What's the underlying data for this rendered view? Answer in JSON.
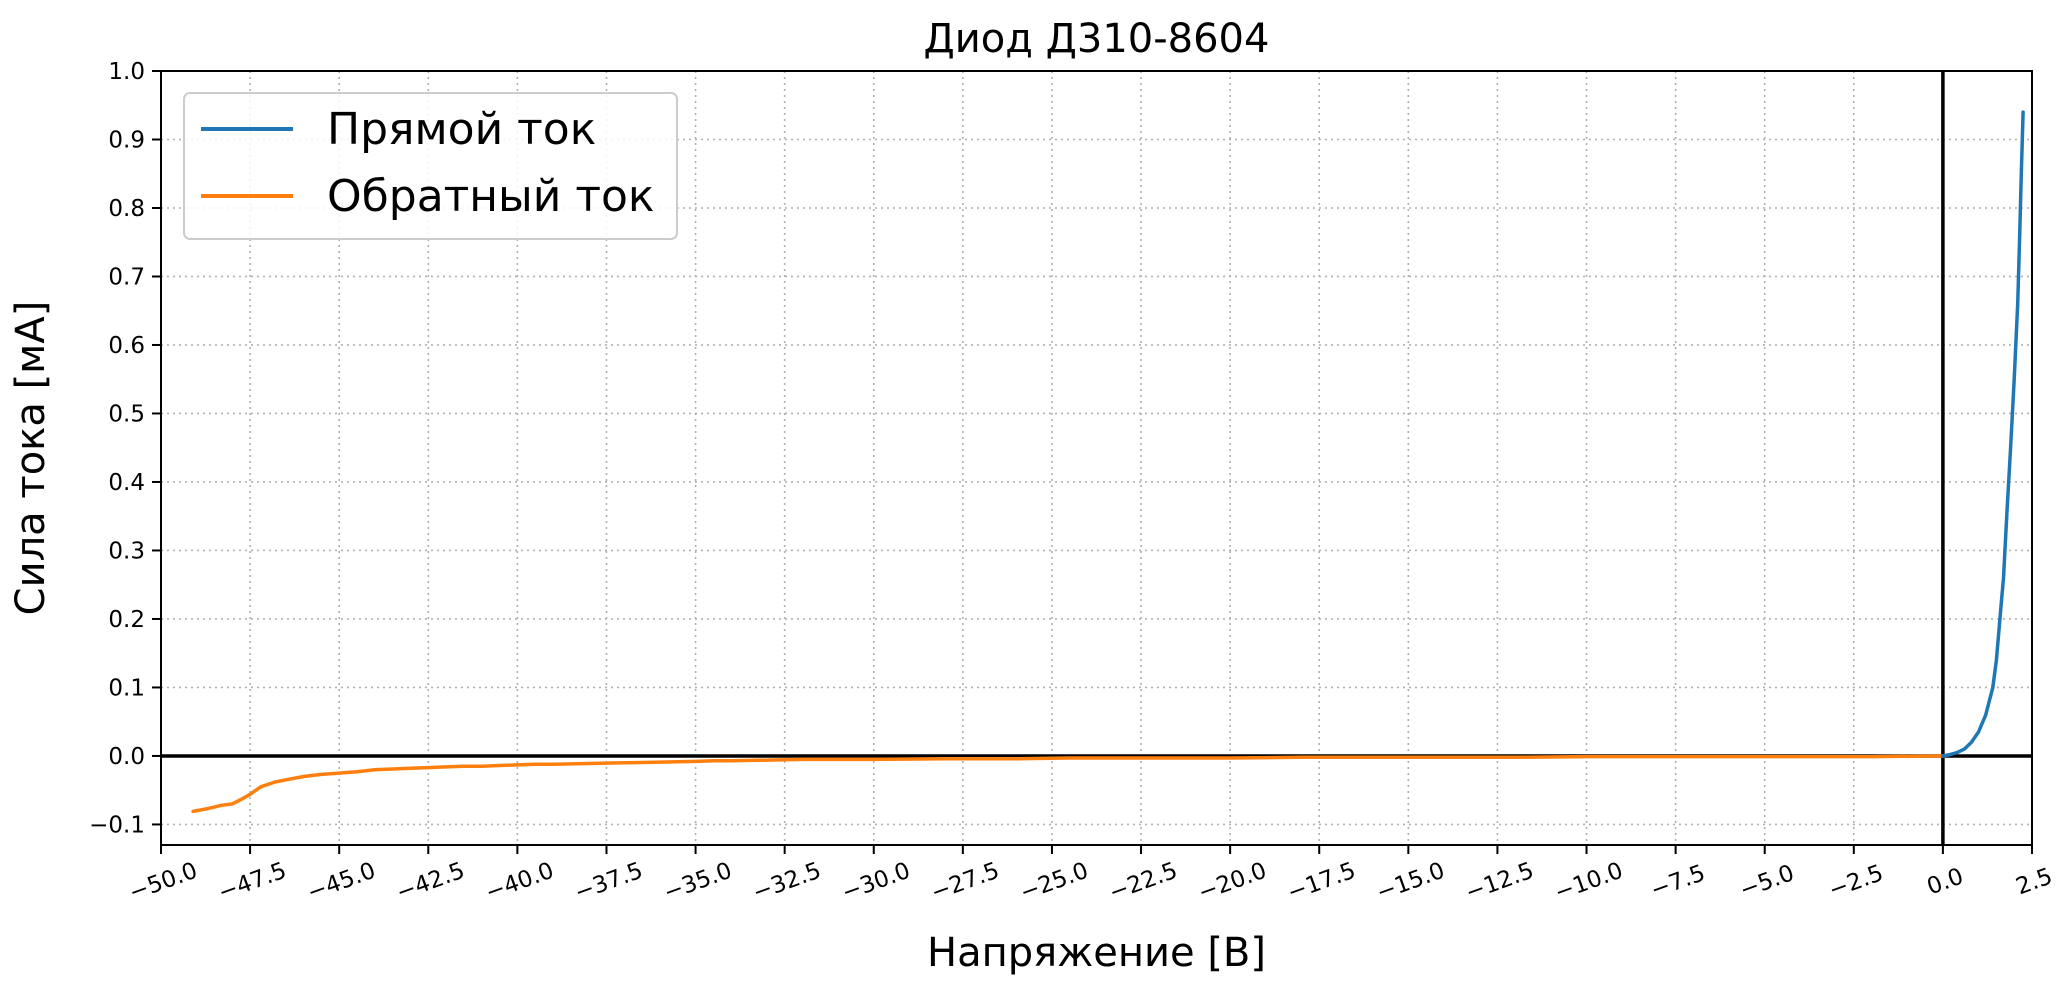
{
  "chart_data": {
    "type": "line",
    "title": "Диод Д310-8604",
    "xlabel": "Напряжение [В]",
    "ylabel": "Сила тока [мА]",
    "xlim": [
      -50.0,
      2.5
    ],
    "ylim": [
      -0.13,
      1.0
    ],
    "x_ticks": [
      -50.0,
      -47.5,
      -45.0,
      -42.5,
      -40.0,
      -37.5,
      -35.0,
      -32.5,
      -30.0,
      -27.5,
      -25.0,
      -22.5,
      -20.0,
      -17.5,
      -15.0,
      -12.5,
      -10.0,
      -7.5,
      -5.0,
      -2.5,
      0.0,
      2.5
    ],
    "y_ticks": [
      -0.1,
      0.0,
      0.1,
      0.2,
      0.3,
      0.4,
      0.5,
      0.6,
      0.7,
      0.8,
      0.9,
      1.0
    ],
    "x_tick_labels": [
      "−50.0",
      "−47.5",
      "−45.0",
      "−42.5",
      "−40.0",
      "−37.5",
      "−35.0",
      "−32.5",
      "−30.0",
      "−27.5",
      "−25.0",
      "−22.5",
      "−20.0",
      "−17.5",
      "−15.0",
      "−12.5",
      "−10.0",
      "−7.5",
      "−5.0",
      "−2.5",
      "0.0",
      "2.5"
    ],
    "y_tick_labels": [
      "−0.1",
      "0.0",
      "0.1",
      "0.2",
      "0.3",
      "0.4",
      "0.5",
      "0.6",
      "0.7",
      "0.8",
      "0.9",
      "1.0"
    ],
    "grid": true,
    "legend_position": "top-left",
    "series": [
      {
        "name": "Прямой ток",
        "color": "#1f77b4",
        "x": [
          0.0,
          0.2,
          0.4,
          0.6,
          0.8,
          1.0,
          1.2,
          1.4,
          1.5,
          1.6,
          1.7,
          1.8,
          1.9,
          2.0,
          2.1,
          2.15,
          2.2,
          2.25
        ],
        "y": [
          0.0,
          0.002,
          0.005,
          0.01,
          0.02,
          0.035,
          0.06,
          0.1,
          0.14,
          0.2,
          0.26,
          0.36,
          0.45,
          0.55,
          0.66,
          0.75,
          0.85,
          0.94
        ]
      },
      {
        "name": "Обратный ток",
        "color": "#ff7f0e",
        "x": [
          -49.1,
          -48.7,
          -48.3,
          -48.0,
          -47.7,
          -47.5,
          -47.2,
          -46.8,
          -46.4,
          -46.0,
          -45.5,
          -45.0,
          -44.5,
          -44.0,
          -43.5,
          -43.0,
          -42.5,
          -42.0,
          -41.5,
          -41.0,
          -40.5,
          -40.0,
          -39.5,
          -39.0,
          -38.0,
          -37.0,
          -36.0,
          -35.0,
          -34.5,
          -34.0,
          -33.0,
          -32.0,
          -30.0,
          -28.0,
          -26.0,
          -24.5,
          -24.0,
          -22.0,
          -20.0,
          -18.0,
          -16.0,
          -14.0,
          -12.0,
          -10.0,
          -8.0,
          -6.0,
          -4.0,
          -2.0,
          0.0
        ],
        "y": [
          -0.081,
          -0.077,
          -0.072,
          -0.07,
          -0.062,
          -0.056,
          -0.045,
          -0.038,
          -0.034,
          -0.03,
          -0.027,
          -0.025,
          -0.023,
          -0.02,
          -0.019,
          -0.018,
          -0.017,
          -0.016,
          -0.015,
          -0.015,
          -0.014,
          -0.013,
          -0.012,
          -0.012,
          -0.011,
          -0.01,
          -0.009,
          -0.008,
          -0.007,
          -0.007,
          -0.006,
          -0.005,
          -0.005,
          -0.004,
          -0.004,
          -0.003,
          -0.003,
          -0.003,
          -0.003,
          -0.002,
          -0.002,
          -0.002,
          -0.002,
          -0.001,
          -0.001,
          -0.001,
          -0.001,
          -0.001,
          0.0
        ]
      }
    ]
  }
}
